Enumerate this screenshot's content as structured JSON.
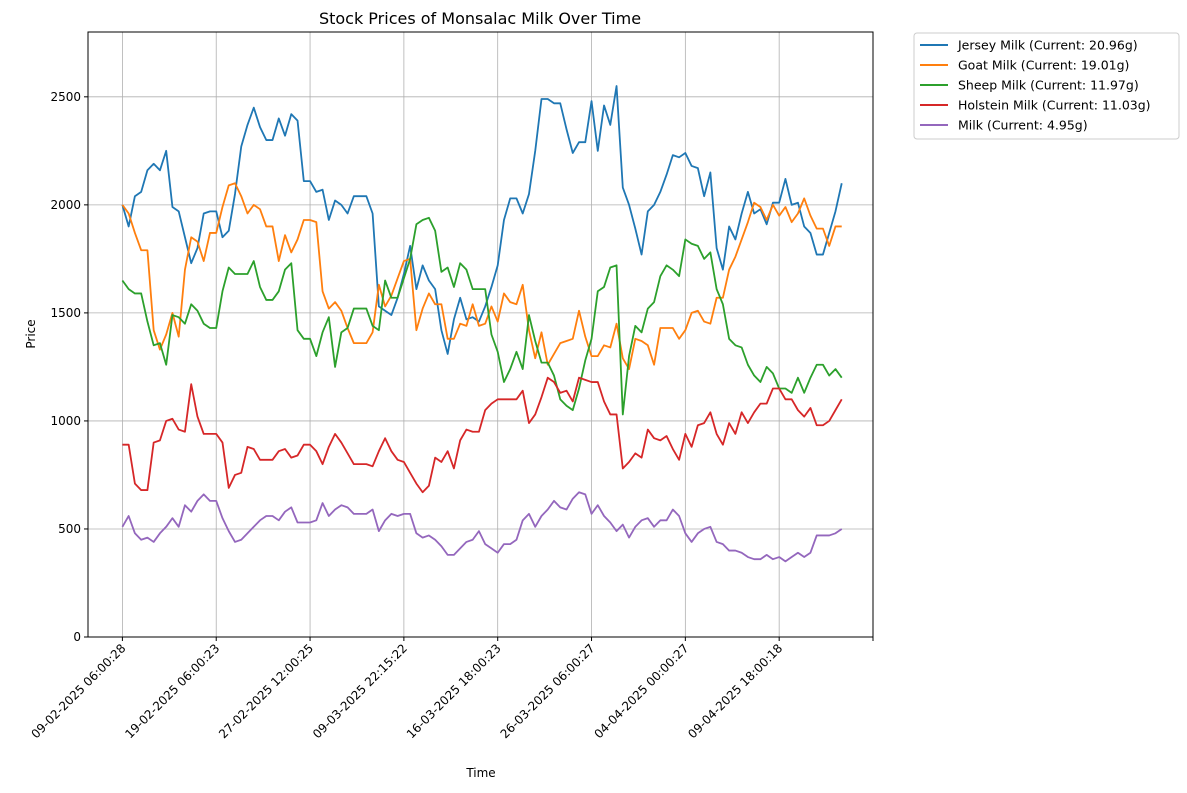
{
  "chart_data": {
    "type": "line",
    "title": "Stock Prices of Monsalac Milk Over Time",
    "xlabel": "Time",
    "ylabel": "Price",
    "ylim": [
      0,
      2800
    ],
    "yticks": [
      0,
      500,
      1000,
      1500,
      2000,
      2500
    ],
    "xtick_labels": [
      "09-02-2025 06:00:28",
      "19-02-2025 06:00:23",
      "27-02-2025 12:00:25",
      "09-03-2025 22:15:22",
      "16-03-2025 18:00:23",
      "26-03-2025 06:00:27",
      "04-04-2025 00:00:27",
      "09-04-2025 18:00:18"
    ],
    "xtick_positions": [
      0,
      15,
      30,
      45,
      60,
      75,
      90,
      105
    ],
    "xlim": [
      -5.5,
      120
    ],
    "grid": true,
    "legend_position": "outside-upper-right",
    "series": [
      {
        "name": "Jersey Milk (Current: 20.96g)",
        "color": "#1f77b4",
        "values": [
          2000,
          1900,
          2040,
          2060,
          2160,
          2190,
          2160,
          2250,
          1990,
          1970,
          1850,
          1730,
          1800,
          1960,
          1970,
          1970,
          1850,
          1880,
          2050,
          2270,
          2370,
          2450,
          2360,
          2300,
          2300,
          2400,
          2320,
          2420,
          2390,
          2110,
          2110,
          2060,
          2070,
          1930,
          2020,
          2000,
          1960,
          2040,
          2040,
          2040,
          1960,
          1530,
          1510,
          1490,
          1570,
          1680,
          1810,
          1610,
          1720,
          1650,
          1610,
          1420,
          1310,
          1470,
          1570,
          1470,
          1480,
          1460,
          1530,
          1620,
          1720,
          1930,
          2030,
          2030,
          1960,
          2050,
          2250,
          2490,
          2490,
          2470,
          2470,
          2350,
          2240,
          2290,
          2290,
          2480,
          2250,
          2460,
          2370,
          2550,
          2080,
          2000,
          1890,
          1770,
          1970,
          2000,
          2060,
          2140,
          2230,
          2220,
          2240,
          2180,
          2170,
          2040,
          2150,
          1800,
          1700,
          1900,
          1840,
          1960,
          2060,
          1960,
          1980,
          1910,
          2010,
          2010,
          2120,
          2000,
          2010,
          1900,
          1870,
          1770,
          1770,
          1870,
          1970,
          2100
        ]
      },
      {
        "name": "Goat Milk (Current: 19.01g)",
        "color": "#ff7f0e",
        "values": [
          2000,
          1960,
          1870,
          1790,
          1790,
          1420,
          1330,
          1400,
          1500,
          1390,
          1700,
          1850,
          1830,
          1740,
          1870,
          1870,
          1990,
          2090,
          2100,
          2040,
          1960,
          2000,
          1980,
          1900,
          1900,
          1740,
          1860,
          1780,
          1840,
          1930,
          1930,
          1920,
          1600,
          1520,
          1550,
          1510,
          1430,
          1360,
          1360,
          1360,
          1410,
          1630,
          1530,
          1580,
          1660,
          1740,
          1750,
          1420,
          1520,
          1590,
          1540,
          1540,
          1380,
          1380,
          1450,
          1440,
          1540,
          1440,
          1450,
          1530,
          1460,
          1590,
          1550,
          1540,
          1630,
          1420,
          1290,
          1410,
          1260,
          1310,
          1360,
          1370,
          1380,
          1510,
          1390,
          1300,
          1300,
          1350,
          1340,
          1450,
          1290,
          1240,
          1380,
          1370,
          1350,
          1260,
          1430,
          1430,
          1430,
          1380,
          1420,
          1500,
          1510,
          1460,
          1450,
          1570,
          1570,
          1700,
          1760,
          1840,
          1920,
          2010,
          1990,
          1930,
          2000,
          1950,
          1990,
          1920,
          1960,
          2030,
          1950,
          1890,
          1890,
          1810,
          1900,
          1900
        ]
      },
      {
        "name": "Sheep Milk (Current: 11.97g)",
        "color": "#2ca02c",
        "values": [
          1650,
          1610,
          1590,
          1590,
          1460,
          1350,
          1360,
          1260,
          1490,
          1480,
          1450,
          1540,
          1510,
          1450,
          1430,
          1430,
          1600,
          1710,
          1680,
          1680,
          1680,
          1740,
          1620,
          1560,
          1560,
          1600,
          1700,
          1730,
          1420,
          1380,
          1380,
          1300,
          1410,
          1480,
          1250,
          1410,
          1430,
          1520,
          1520,
          1520,
          1440,
          1420,
          1650,
          1570,
          1570,
          1660,
          1750,
          1910,
          1930,
          1940,
          1880,
          1690,
          1710,
          1620,
          1730,
          1700,
          1610,
          1610,
          1610,
          1400,
          1320,
          1180,
          1240,
          1320,
          1240,
          1490,
          1370,
          1270,
          1270,
          1210,
          1100,
          1070,
          1050,
          1150,
          1280,
          1380,
          1600,
          1620,
          1710,
          1720,
          1030,
          1300,
          1440,
          1410,
          1520,
          1550,
          1670,
          1720,
          1700,
          1670,
          1840,
          1820,
          1810,
          1750,
          1780,
          1610,
          1540,
          1380,
          1350,
          1340,
          1260,
          1210,
          1180,
          1250,
          1220,
          1150,
          1150,
          1130,
          1200,
          1130,
          1200,
          1260,
          1260,
          1210,
          1240,
          1200
        ]
      },
      {
        "name": "Holstein Milk (Current: 11.03g)",
        "color": "#d62728",
        "values": [
          890,
          890,
          710,
          680,
          680,
          900,
          910,
          1000,
          1010,
          960,
          950,
          1170,
          1020,
          940,
          940,
          940,
          900,
          690,
          750,
          760,
          880,
          870,
          820,
          820,
          820,
          860,
          870,
          830,
          840,
          890,
          890,
          860,
          800,
          880,
          940,
          900,
          850,
          800,
          800,
          800,
          790,
          860,
          920,
          860,
          820,
          810,
          760,
          710,
          670,
          700,
          830,
          810,
          860,
          780,
          910,
          960,
          950,
          950,
          1050,
          1080,
          1100,
          1100,
          1100,
          1100,
          1140,
          990,
          1030,
          1110,
          1200,
          1180,
          1130,
          1140,
          1090,
          1200,
          1190,
          1180,
          1180,
          1090,
          1030,
          1030,
          780,
          810,
          850,
          830,
          960,
          920,
          910,
          930,
          870,
          820,
          940,
          880,
          980,
          990,
          1040,
          940,
          890,
          990,
          940,
          1040,
          990,
          1040,
          1080,
          1080,
          1150,
          1150,
          1100,
          1100,
          1050,
          1020,
          1060,
          980,
          980,
          1000,
          1050,
          1100
        ]
      },
      {
        "name": "Milk (Current: 4.95g)",
        "color": "#9467bd",
        "values": [
          510,
          560,
          480,
          450,
          460,
          440,
          480,
          510,
          550,
          510,
          610,
          580,
          630,
          660,
          630,
          630,
          550,
          490,
          440,
          450,
          480,
          510,
          540,
          560,
          560,
          540,
          580,
          600,
          530,
          530,
          530,
          540,
          620,
          560,
          590,
          610,
          600,
          570,
          570,
          570,
          590,
          490,
          540,
          570,
          560,
          570,
          570,
          480,
          460,
          470,
          450,
          420,
          380,
          380,
          410,
          440,
          450,
          490,
          430,
          410,
          390,
          430,
          430,
          450,
          540,
          570,
          510,
          560,
          590,
          630,
          600,
          590,
          640,
          670,
          660,
          570,
          610,
          560,
          530,
          490,
          520,
          460,
          510,
          540,
          550,
          510,
          540,
          540,
          590,
          560,
          480,
          440,
          480,
          500,
          510,
          440,
          430,
          400,
          400,
          390,
          370,
          360,
          360,
          380,
          360,
          370,
          350,
          370,
          390,
          370,
          390,
          470,
          470,
          470,
          480,
          500
        ]
      }
    ]
  }
}
